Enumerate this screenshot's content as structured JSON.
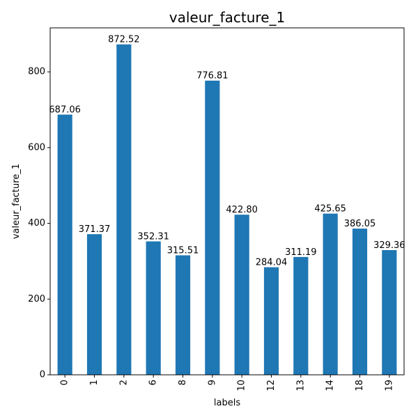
{
  "chart_data": {
    "type": "bar",
    "title": "valeur_facture_1",
    "xlabel": "labels",
    "ylabel": "valeur_facture_1",
    "categories": [
      "0",
      "1",
      "2",
      "6",
      "8",
      "9",
      "10",
      "12",
      "13",
      "14",
      "18",
      "19"
    ],
    "values": [
      687.06,
      371.37,
      872.52,
      352.31,
      315.51,
      776.81,
      422.8,
      284.04,
      311.19,
      425.65,
      386.05,
      329.36
    ],
    "data_labels": [
      "687.06",
      "371.37",
      "872.52",
      "352.31",
      "315.51",
      "776.81",
      "422.80",
      "284.04",
      "311.19",
      "425.65",
      "386.05",
      "329.36"
    ],
    "yticks": [
      0,
      200,
      400,
      600,
      800
    ],
    "ylim": [
      0,
      916.146
    ],
    "bar_color": "#1f77b4",
    "grid": false,
    "legend": "none"
  }
}
